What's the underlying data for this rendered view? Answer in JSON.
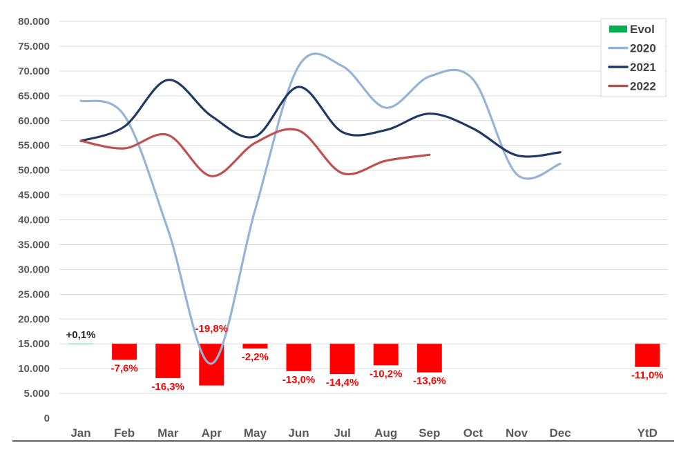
{
  "chart_data": {
    "type": "line",
    "title": "",
    "xlabel": "",
    "ylabel": "",
    "ylim": [
      0,
      80000
    ],
    "yticks": [
      "0",
      "5.000",
      "10.000",
      "15.000",
      "20.000",
      "25.000",
      "30.000",
      "35.000",
      "40.000",
      "45.000",
      "50.000",
      "55.000",
      "60.000",
      "65.000",
      "70.000",
      "75.000",
      "80.000"
    ],
    "categories": [
      "Jan",
      "Feb",
      "Mar",
      "Apr",
      "May",
      "Jun",
      "Jul",
      "Aug",
      "Sep",
      "Oct",
      "Nov",
      "Dec",
      "",
      "YtD"
    ],
    "grid": true,
    "legend_position": "top-right",
    "series": [
      {
        "name": "2020",
        "color": "#95b3d7",
        "values": [
          64000,
          61000,
          38000,
          11000,
          42000,
          71000,
          71000,
          62600,
          68900,
          68300,
          49200,
          51300,
          null,
          null
        ]
      },
      {
        "name": "2021",
        "color": "#1f3864",
        "values": [
          55900,
          58800,
          68200,
          60900,
          56800,
          66800,
          57700,
          58100,
          61400,
          58400,
          53000,
          53600,
          null,
          null
        ]
      },
      {
        "name": "2022",
        "color": "#c0504d",
        "values": [
          55900,
          54400,
          57100,
          48800,
          55500,
          58000,
          49400,
          51900,
          53100,
          null,
          null,
          null,
          null,
          null
        ]
      }
    ],
    "evol": {
      "name": "Evol",
      "legend_color": "#00b050",
      "baseline": 15000,
      "negative_color": "#ff0000",
      "values": [
        0.1,
        -7.6,
        -16.3,
        -19.8,
        -2.2,
        -13.0,
        -14.4,
        -10.2,
        -13.6,
        null,
        null,
        null,
        null,
        -11.0
      ],
      "labels": [
        "+0,1%",
        "-7,6%",
        "-16,3%",
        "-19,8%",
        "-2,2%",
        "-13,0%",
        "-14,4%",
        "-10,2%",
        "-13,6%",
        "",
        "",
        "",
        "",
        "-11,0%"
      ],
      "label_colors": [
        "#262626",
        "#ff0000",
        "#ff0000",
        "#ff0000",
        "#ff0000",
        "#ff0000",
        "#ff0000",
        "#ff0000",
        "#ff0000",
        "",
        "",
        "",
        "",
        "#ff0000"
      ]
    }
  }
}
